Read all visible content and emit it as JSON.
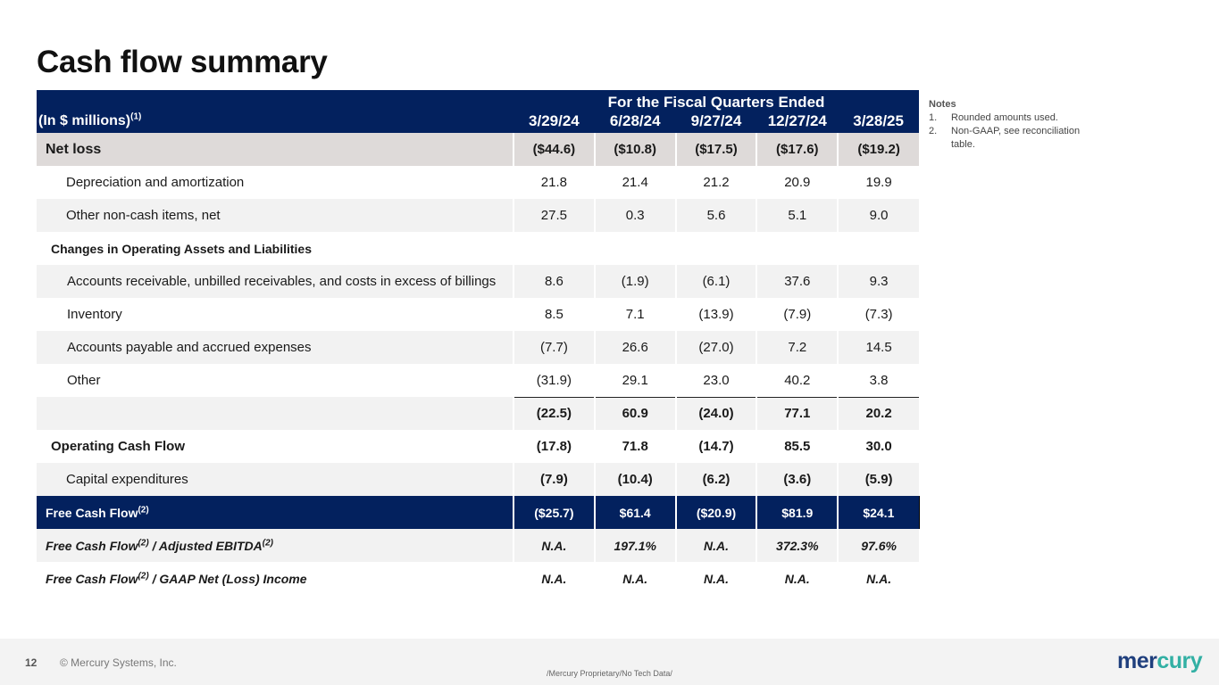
{
  "title": "Cash flow summary",
  "table": {
    "group_header": "For the Fiscal Quarters Ended",
    "label_header": "(In $ millions)",
    "label_header_sup": "(1)",
    "periods": [
      "3/29/24",
      "6/28/24",
      "9/27/24",
      "12/27/24",
      "3/28/25"
    ],
    "rows": [
      {
        "label": "Net loss",
        "values": [
          "($44.6)",
          "($10.8)",
          "($17.5)",
          "($17.6)",
          "($19.2)"
        ]
      },
      {
        "label": "Depreciation and amortization",
        "values": [
          "21.8",
          "21.4",
          "21.2",
          "20.9",
          "19.9"
        ]
      },
      {
        "label": "Other non-cash items, net",
        "values": [
          "27.5",
          "0.3",
          "5.6",
          "5.1",
          "9.0"
        ]
      },
      {
        "label": "Changes in Operating Assets and Liabilities",
        "values": [
          "",
          "",
          "",
          "",
          ""
        ]
      },
      {
        "label": "Accounts receivable, unbilled receivables, and costs in excess of billings",
        "values": [
          "8.6",
          "(1.9)",
          "(6.1)",
          "37.6",
          "9.3"
        ]
      },
      {
        "label": "Inventory",
        "values": [
          "8.5",
          "7.1",
          "(13.9)",
          "(7.9)",
          "(7.3)"
        ]
      },
      {
        "label": "Accounts payable and accrued expenses",
        "values": [
          "(7.7)",
          "26.6",
          "(27.0)",
          "7.2",
          "14.5"
        ]
      },
      {
        "label": "Other",
        "values": [
          "(31.9)",
          "29.1",
          "23.0",
          "40.2",
          "3.8"
        ]
      },
      {
        "label": "",
        "values": [
          "(22.5)",
          "60.9",
          "(24.0)",
          "77.1",
          "20.2"
        ]
      },
      {
        "label": "Operating Cash Flow",
        "values": [
          "(17.8)",
          "71.8",
          "(14.7)",
          "85.5",
          "30.0"
        ]
      },
      {
        "label": "Capital expenditures",
        "values": [
          "(7.9)",
          "(10.4)",
          "(6.2)",
          "(3.6)",
          "(5.9)"
        ]
      },
      {
        "label": "Free Cash Flow",
        "sup": "(2)",
        "values": [
          "($25.7)",
          "$61.4",
          "($20.9)",
          "$81.9",
          "$24.1"
        ]
      },
      {
        "label_a": "Free Cash Flow",
        "sup_a": "(2)",
        "label_b": " / Adjusted EBITDA",
        "sup_b": "(2)",
        "values": [
          "N.A.",
          "197.1%",
          "N.A.",
          "372.3%",
          "97.6%"
        ]
      },
      {
        "label_a": "Free Cash Flow",
        "sup_a": "(2)",
        "label_b": " / GAAP Net (Loss) Income",
        "values": [
          "N.A.",
          "N.A.",
          "N.A.",
          "N.A.",
          "N.A."
        ]
      }
    ]
  },
  "notes": {
    "heading": "Notes",
    "items": [
      {
        "num": "1.",
        "text": "Rounded amounts used."
      },
      {
        "num": "2.",
        "text": "Non-GAAP, see reconciliation table."
      }
    ]
  },
  "footer": {
    "page_number": "12",
    "copyright": "© Mercury Systems, Inc.",
    "proprietary": "/Mercury Proprietary/No Tech Data/",
    "logo_a": "mer",
    "logo_b": "cury"
  },
  "colors": {
    "header_navy": "#03215e",
    "row_shade": "#f2f2f2",
    "net_loss_shade": "#dedad9",
    "logo_blue": "#1f3f7d",
    "logo_teal": "#32b0a4"
  }
}
